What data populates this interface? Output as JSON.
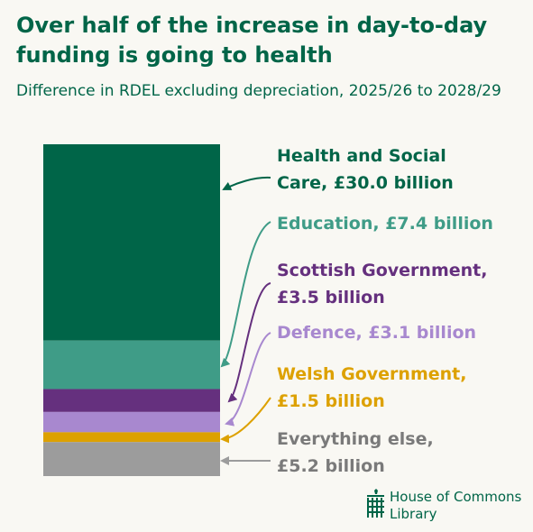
{
  "title": "Over half of the increase in day-to-day funding is going to health",
  "subtitle": "Difference in RDEL excluding depreciation, 2025/26 to 2028/29",
  "chart_data": {
    "type": "bar",
    "layout": "single stacked bar",
    "unit": "£ billion",
    "series": [
      {
        "name": "Health and Social Care",
        "value": 30.0,
        "label": "Health and Social Care, £30.0 billion",
        "color": "#006548"
      },
      {
        "name": "Education",
        "value": 7.4,
        "label": "Education, £7.4 billion",
        "color": "#3f9c87"
      },
      {
        "name": "Scottish Government",
        "value": 3.5,
        "label": "Scottish Government, £3.5 billion",
        "color": "#65307e"
      },
      {
        "name": "Defence",
        "value": 3.1,
        "label": "Defence, £3.1 billion",
        "color": "#a888cf"
      },
      {
        "name": "Welsh Government",
        "value": 1.5,
        "label": "Welsh Government, £1.5 billion",
        "color": "#dda100"
      },
      {
        "name": "Everything else",
        "value": 5.2,
        "label": "Everything else, £5.2 billion",
        "color": "#9c9c9c"
      }
    ]
  },
  "logo": {
    "line1": "House of Commons",
    "line2": "Library",
    "color": "#006548",
    "icon": "portcullis-icon"
  }
}
